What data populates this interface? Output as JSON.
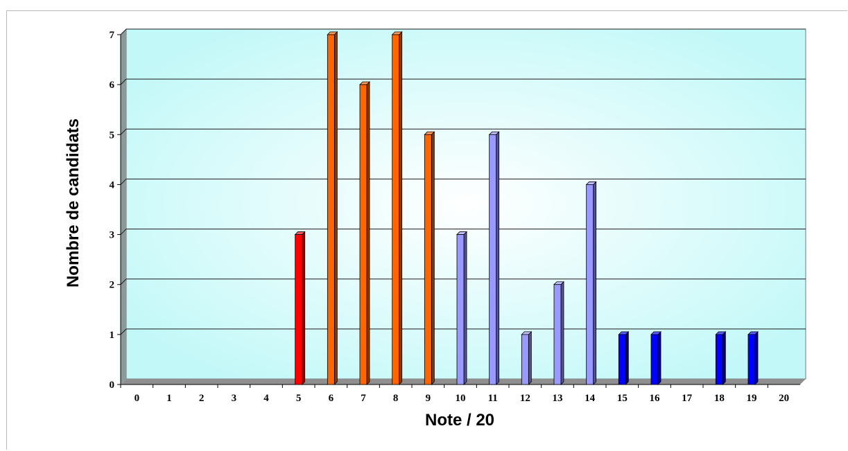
{
  "chart_data": {
    "type": "bar",
    "title": "",
    "xlabel": "Note / 20",
    "ylabel": "Nombre de candidats",
    "ylim": [
      0,
      7
    ],
    "yticks": [
      0,
      1,
      2,
      3,
      4,
      5,
      6,
      7
    ],
    "grid": "horizontal",
    "categories": [
      "0",
      "1",
      "2",
      "3",
      "4",
      "5",
      "6",
      "7",
      "8",
      "9",
      "10",
      "11",
      "12",
      "13",
      "14",
      "15",
      "16",
      "17",
      "18",
      "19",
      "20"
    ],
    "values": [
      0,
      0,
      0,
      0,
      0,
      3,
      7,
      6,
      7,
      5,
      3,
      5,
      1,
      2,
      4,
      1,
      1,
      0,
      1,
      1,
      0
    ],
    "bar_colors": [
      "#ff6600",
      "#ff6600",
      "#ff6600",
      "#ff6600",
      "#ff6600",
      "#ff0000",
      "#ff6600",
      "#ff6600",
      "#ff6600",
      "#ff6600",
      "#9999ff",
      "#9999ff",
      "#9999ff",
      "#9999ff",
      "#9999ff",
      "#0000ff",
      "#0000ff",
      "#0000ff",
      "#0000ff",
      "#0000ff",
      "#0000ff"
    ],
    "colors": {
      "plot_bg_center": "#ffffff",
      "plot_bg_edge": "#c2f8f8",
      "wall_side": "#8a9a9a",
      "floor": "#8f8f8f",
      "gridline": "#1a1a1a"
    }
  }
}
